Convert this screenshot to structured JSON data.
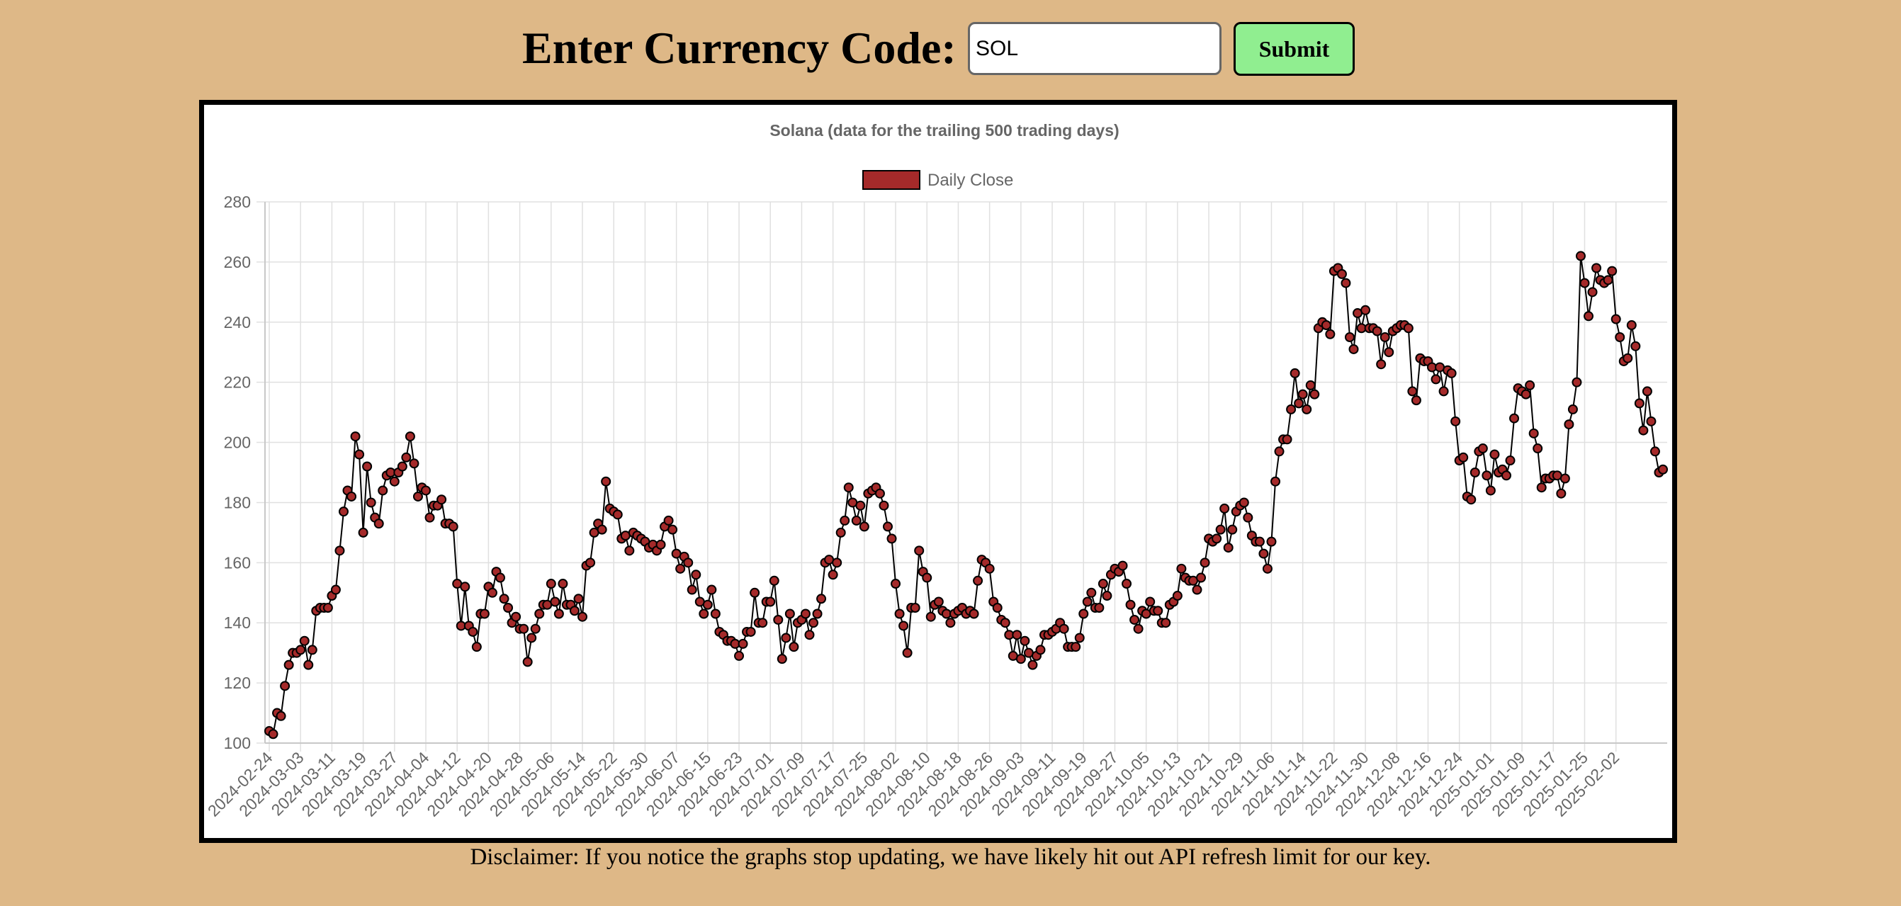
{
  "form": {
    "prompt_label": "Enter Currency Code:",
    "currency_input_value": "SOL",
    "submit_label": "Submit"
  },
  "disclaimer": "Disclaimer: If you notice the graphs stop updating, we have likely hit out API refresh limit for our key.",
  "colors": {
    "page_background": "#DEB887",
    "point_fill": "#A52A2A",
    "line": "#000000",
    "submit_button": "#90EE90"
  },
  "chart_data": {
    "type": "line",
    "title": "Solana (data for the trailing 500 trading days)",
    "legend": {
      "label": "Daily Close",
      "position": "top-center"
    },
    "xlabel": "",
    "ylabel": "",
    "ylim": [
      100,
      280
    ],
    "yticks": [
      100,
      120,
      140,
      160,
      180,
      200,
      220,
      240,
      260,
      280
    ],
    "grid": true,
    "xticks": [
      "2024-02-24",
      "2024-03-03",
      "2024-03-11",
      "2024-03-19",
      "2024-03-27",
      "2024-04-04",
      "2024-04-12",
      "2024-04-20",
      "2024-04-28",
      "2024-05-06",
      "2024-05-14",
      "2024-05-22",
      "2024-05-30",
      "2024-06-07",
      "2024-06-15",
      "2024-06-23",
      "2024-07-01",
      "2024-07-09",
      "2024-07-17",
      "2024-07-25",
      "2024-08-02",
      "2024-08-10",
      "2024-08-18",
      "2024-08-26",
      "2024-09-03",
      "2024-09-11",
      "2024-09-19",
      "2024-09-27",
      "2024-10-05",
      "2024-10-13",
      "2024-10-21",
      "2024-10-29",
      "2024-11-06",
      "2024-11-14",
      "2024-11-22",
      "2024-11-30",
      "2024-12-08",
      "2024-12-16",
      "2024-12-24",
      "2025-01-01",
      "2025-01-09",
      "2025-01-17",
      "2025-01-25",
      "2025-02-02"
    ],
    "x_start": "2024-02-24",
    "series": [
      {
        "name": "Daily Close",
        "values": [
          104,
          103,
          110,
          109,
          119,
          126,
          130,
          130,
          131,
          134,
          126,
          131,
          144,
          145,
          145,
          145,
          149,
          151,
          164,
          177,
          184,
          182,
          202,
          196,
          170,
          192,
          180,
          175,
          173,
          184,
          189,
          190,
          187,
          190,
          192,
          195,
          202,
          193,
          182,
          185,
          184,
          175,
          179,
          179,
          181,
          173,
          173,
          172,
          153,
          139,
          152,
          139,
          137,
          132,
          143,
          143,
          152,
          150,
          157,
          155,
          148,
          145,
          140,
          142,
          138,
          138,
          127,
          135,
          138,
          143,
          146,
          146,
          153,
          147,
          143,
          153,
          146,
          146,
          144,
          148,
          142,
          159,
          160,
          170,
          173,
          171,
          187,
          178,
          177,
          176,
          168,
          169,
          164,
          170,
          169,
          168,
          167,
          165,
          166,
          164,
          166,
          172,
          174,
          171,
          163,
          158,
          162,
          160,
          151,
          156,
          147,
          143,
          146,
          151,
          143,
          137,
          136,
          134,
          134,
          133,
          129,
          133,
          137,
          137,
          150,
          140,
          140,
          147,
          147,
          154,
          141,
          128,
          135,
          143,
          132,
          140,
          141,
          143,
          136,
          140,
          143,
          148,
          160,
          161,
          156,
          160,
          170,
          174,
          185,
          180,
          174,
          179,
          172,
          183,
          184,
          185,
          183,
          179,
          172,
          168,
          153,
          143,
          139,
          130,
          145,
          145,
          164,
          157,
          155,
          142,
          146,
          147,
          144,
          143,
          140,
          143,
          144,
          145,
          143,
          144,
          143,
          154,
          161,
          160,
          158,
          147,
          145,
          141,
          140,
          136,
          129,
          136,
          128,
          134,
          130,
          126,
          129,
          131,
          136,
          136,
          137,
          138,
          140,
          138,
          132,
          132,
          132,
          135,
          143,
          147,
          150,
          145,
          145,
          153,
          149,
          156,
          158,
          157,
          159,
          153,
          146,
          141,
          138,
          144,
          143,
          147,
          144,
          144,
          140,
          140,
          146,
          147,
          149,
          158,
          155,
          154,
          154,
          151,
          155,
          160,
          168,
          167,
          168,
          171,
          178,
          165,
          171,
          177,
          179,
          180,
          175,
          169,
          167,
          167,
          163,
          158,
          167,
          187,
          197,
          201,
          201,
          211,
          223,
          213,
          216,
          211,
          219,
          216,
          238,
          240,
          239,
          236,
          257,
          258,
          256,
          253,
          235,
          231,
          243,
          238,
          244,
          238,
          238,
          237,
          226,
          235,
          230,
          237,
          238,
          239,
          239,
          238,
          217,
          214,
          228,
          227,
          227,
          225,
          221,
          225,
          217,
          224,
          223,
          207,
          194,
          195,
          182,
          181,
          190,
          197,
          198,
          189,
          184,
          196,
          190,
          191,
          189,
          194,
          208,
          218,
          217,
          216,
          219,
          203,
          198,
          185,
          188,
          188,
          189,
          189,
          183,
          188,
          206,
          211,
          220,
          262,
          253,
          242,
          250,
          258,
          254,
          253,
          254,
          257,
          241,
          235,
          227,
          228,
          239,
          232,
          213,
          204,
          217,
          207,
          197,
          190,
          191
        ]
      }
    ]
  }
}
